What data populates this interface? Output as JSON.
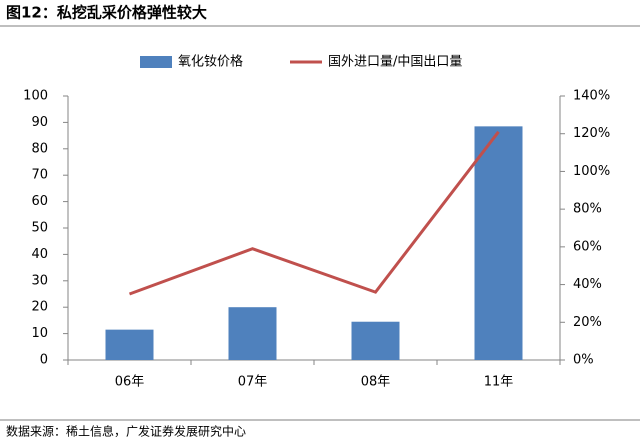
{
  "chart_data": {
    "type": "bar_line",
    "title": "图12：私挖乱采价格弹性较大",
    "source": "数据来源：稀土信息，广发证券发展研究中心",
    "categories": [
      "06年",
      "07年",
      "08年",
      "11年"
    ],
    "series": [
      {
        "name": "氧化钕价格",
        "type": "bar",
        "color": "#4f81bd",
        "values": [
          11.5,
          20,
          14.5,
          88.5
        ]
      },
      {
        "name": "国外进口量/中国出口量",
        "type": "line",
        "axis": "y2",
        "color": "#c0504d",
        "values": [
          35,
          59,
          36,
          121
        ]
      }
    ],
    "ylim": [
      0,
      100
    ],
    "yticks": [
      0,
      10,
      20,
      30,
      40,
      50,
      60,
      70,
      80,
      90,
      100
    ],
    "y2lim": [
      0,
      140
    ],
    "y2ticks": [
      {
        "value": 0,
        "label": "0%"
      },
      {
        "value": 20,
        "label": "20%"
      },
      {
        "value": 40,
        "label": "40%"
      },
      {
        "value": 60,
        "label": "60%"
      },
      {
        "value": 80,
        "label": "80%"
      },
      {
        "value": 100,
        "label": "100%"
      },
      {
        "value": 120,
        "label": "120%"
      },
      {
        "value": 140,
        "label": "140%"
      }
    ],
    "grid": false
  }
}
